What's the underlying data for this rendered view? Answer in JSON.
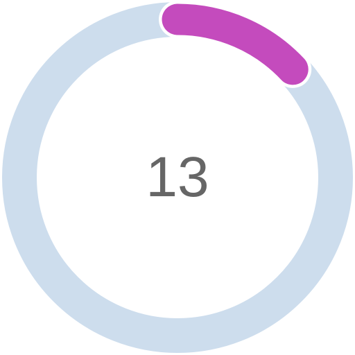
{
  "progress": {
    "value_text": "13",
    "fraction": 0.13
  },
  "colors": {
    "track": "#cddded",
    "progress": "#c44bbd",
    "progress_outline": "#ffffff",
    "text": "#666666"
  }
}
